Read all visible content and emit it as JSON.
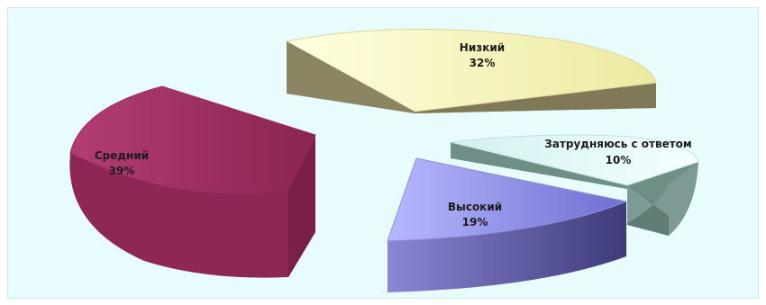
{
  "chart_data": {
    "type": "pie",
    "title": "",
    "three_d": true,
    "exploded": true,
    "slices": [
      {
        "label": "Низкий",
        "value_label": "32%",
        "value": 32,
        "color": "#f6f4c7",
        "side": "#8c8563"
      },
      {
        "label": "Затрудняюсь с ответом",
        "value_label": "10%",
        "value": 10,
        "color": "#d8f1f1",
        "side": "#6f8e86"
      },
      {
        "label": "Высокий",
        "value_label": "19%",
        "value": 19,
        "color": "#9e9ef2",
        "side": "#4f4c8a"
      },
      {
        "label": "Средний",
        "value_label": "39%",
        "value": 39,
        "color": "#a8386a",
        "side": "#8e2754"
      }
    ]
  }
}
